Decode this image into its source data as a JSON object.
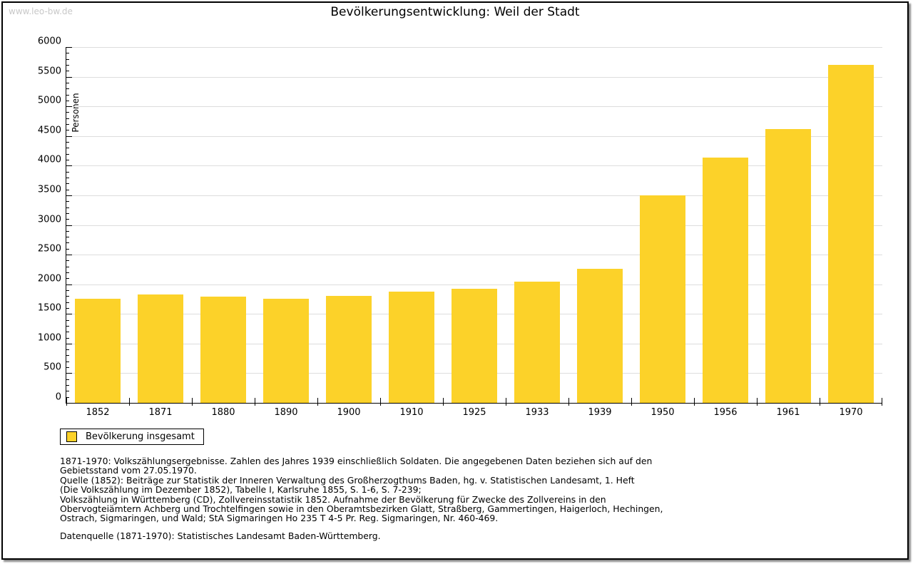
{
  "watermark": "www.leo-bw.de",
  "colors": {
    "bar": "#fcd229",
    "grid": "#dddddd",
    "axis": "#000000",
    "watermark": "#c8c8c8"
  },
  "chart_data": {
    "type": "bar",
    "title": "Bevölkerungsentwicklung: Weil der Stadt",
    "categories": [
      "1852",
      "1871",
      "1880",
      "1890",
      "1900",
      "1910",
      "1925",
      "1933",
      "1939",
      "1950",
      "1956",
      "1961",
      "1970"
    ],
    "values": [
      1750,
      1830,
      1790,
      1750,
      1800,
      1870,
      1930,
      2040,
      2260,
      3500,
      4140,
      4620,
      5700
    ],
    "series_name": "Bevölkerung insgesamt",
    "xlabel": "",
    "ylabel": "Personen",
    "ylim": [
      0,
      6000
    ],
    "ytick_step": 500,
    "yminor_step": 100,
    "grid": true,
    "legend_position": "bottom-left"
  },
  "legend": {
    "label": "Bevölkerung insgesamt"
  },
  "footer": {
    "lines": [
      "1871-1970: Volkszählungsergebnisse. Zahlen des Jahres 1939 einschließlich Soldaten. Die angegebenen Daten beziehen sich auf den",
      "Gebietsstand vom 27.05.1970.",
      "Quelle (1852): Beiträge zur Statistik der Inneren Verwaltung des Großherzogthums Baden, hg. v. Statistischen Landesamt, 1. Heft",
      "(Die Volkszählung im Dezember 1852), Tabelle I, Karlsruhe 1855, S. 1-6, S. 7-239;",
      "Volkszählung in Württemberg (CD), Zollvereinsstatistik 1852. Aufnahme der Bevölkerung für Zwecke des Zollvereins in den",
      "Obervogteiämtern Achberg und Trochtelfingen sowie in den Oberamtsbezirken Glatt, Straßberg, Gammertingen, Haigerloch, Hechingen,",
      "Ostrach, Sigmaringen, und Wald; StA Sigmaringen Ho 235 T 4-5 Pr. Reg. Sigmaringen, Nr. 460-469."
    ],
    "datasource": "Datenquelle (1871-1970): Statistisches Landesamt Baden-Württemberg."
  }
}
